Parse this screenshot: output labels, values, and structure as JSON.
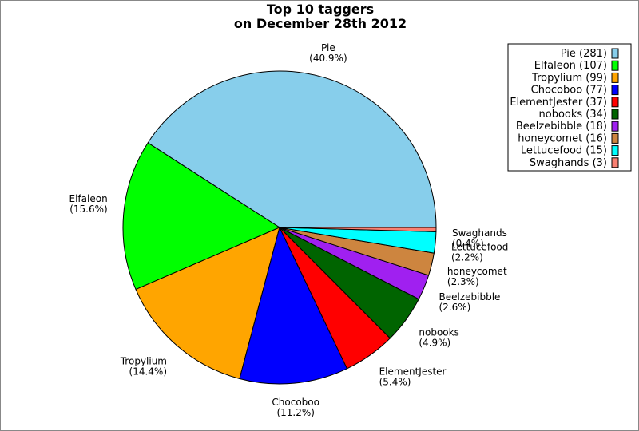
{
  "chart_data": {
    "type": "pie",
    "title": "Top 10 taggers",
    "subtitle": "on December 28th 2012",
    "slices": [
      {
        "name": "Pie",
        "value": 281,
        "percent_label": "(40.9%)",
        "legend": "Pie (281)",
        "color": "#87ceeb"
      },
      {
        "name": "Elfaleon",
        "value": 107,
        "percent_label": "(15.6%)",
        "legend": "Elfaleon (107)",
        "color": "#00ff00"
      },
      {
        "name": "Tropylium",
        "value": 99,
        "percent_label": "(14.4%)",
        "legend": "Tropylium (99)",
        "color": "#ffa500"
      },
      {
        "name": "Chocoboo",
        "value": 77,
        "percent_label": "(11.2%)",
        "legend": "Chocoboo (77)",
        "color": "#0000ff"
      },
      {
        "name": "ElementJester",
        "value": 37,
        "percent_label": "(5.4%)",
        "legend": "ElementJester (37)",
        "color": "#ff0000"
      },
      {
        "name": "nobooks",
        "value": 34,
        "percent_label": "(4.9%)",
        "legend": "nobooks (34)",
        "color": "#006400"
      },
      {
        "name": "Beelzebibble",
        "value": 18,
        "percent_label": "(2.6%)",
        "legend": "Beelzebibble (18)",
        "color": "#a020f0"
      },
      {
        "name": "honeycomet",
        "value": 16,
        "percent_label": "(2.3%)",
        "legend": "honeycomet (16)",
        "color": "#cd853f"
      },
      {
        "name": "Lettucefood",
        "value": 15,
        "percent_label": "(2.2%)",
        "legend": "Lettucefood (15)",
        "color": "#00ffff"
      },
      {
        "name": "Swaghands",
        "value": 3,
        "percent_label": "(0.4%)",
        "legend": "Swaghands (3)",
        "color": "#fa8072"
      }
    ],
    "legend_position": "top-right"
  }
}
